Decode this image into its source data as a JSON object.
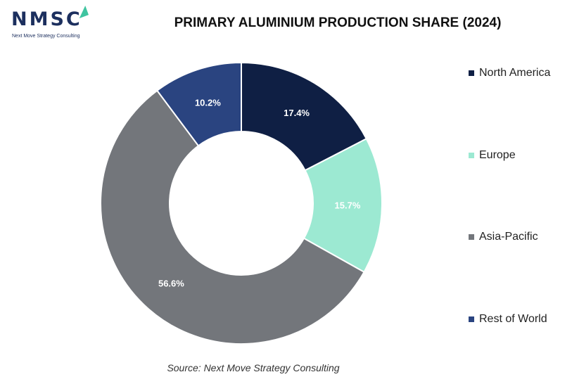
{
  "logo": {
    "text": "NMSC",
    "tagline": "Next Move Strategy Consulting",
    "accent_color": "#3fc4a0",
    "text_color": "#1c2f5e"
  },
  "source": "Source: Next Move Strategy Consulting",
  "chart_data": {
    "type": "pie",
    "title": "PRIMARY ALUMINIUM PRODUCTION SHARE (2024)",
    "donut": true,
    "legend_position": "right",
    "series": [
      {
        "name": "North America",
        "value": 17.4,
        "label": "17.4%",
        "color": "#0f1f44"
      },
      {
        "name": "Europe",
        "value": 15.7,
        "label": "15.7%",
        "color": "#9ce9d2"
      },
      {
        "name": "Asia-Pacific",
        "value": 56.6,
        "label": "56.6%",
        "color": "#73767b"
      },
      {
        "name": "Rest of World",
        "value": 10.2,
        "label": "10.2%",
        "color": "#2a4480"
      }
    ]
  }
}
